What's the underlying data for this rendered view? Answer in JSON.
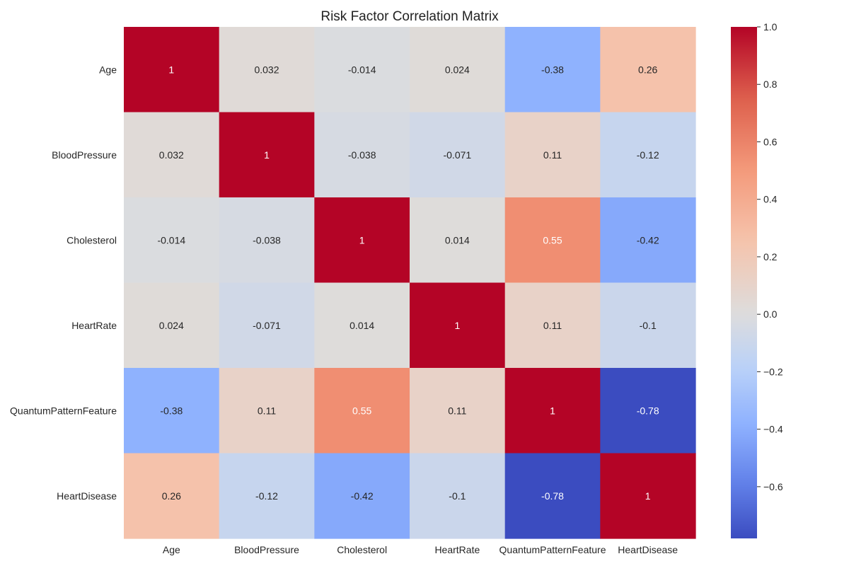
{
  "chart_data": {
    "type": "heatmap",
    "title": "Risk Factor Correlation Matrix",
    "xlabel": "",
    "ylabel": "",
    "x_categories": [
      "Age",
      "BloodPressure",
      "Cholesterol",
      "HeartRate",
      "QuantumPatternFeature",
      "HeartDisease"
    ],
    "y_categories": [
      "Age",
      "BloodPressure",
      "Cholesterol",
      "HeartRate",
      "QuantumPatternFeature",
      "HeartDisease"
    ],
    "values": [
      [
        1,
        0.032,
        -0.014,
        0.024,
        -0.38,
        0.26
      ],
      [
        0.032,
        1,
        -0.038,
        -0.071,
        0.11,
        -0.12
      ],
      [
        -0.014,
        -0.038,
        1,
        0.014,
        0.55,
        -0.42
      ],
      [
        0.024,
        -0.071,
        0.014,
        1,
        0.11,
        -0.1
      ],
      [
        -0.38,
        0.11,
        0.55,
        0.11,
        1,
        -0.78
      ],
      [
        0.26,
        -0.12,
        -0.42,
        -0.1,
        -0.78,
        1
      ]
    ],
    "annotations": [
      [
        "1",
        "0.032",
        "-0.014",
        "0.024",
        "-0.38",
        "0.26"
      ],
      [
        "0.032",
        "1",
        "-0.038",
        "-0.071",
        "0.11",
        "-0.12"
      ],
      [
        "-0.014",
        "-0.038",
        "1",
        "0.014",
        "0.55",
        "-0.42"
      ],
      [
        "0.024",
        "-0.071",
        "0.014",
        "1",
        "0.11",
        "-0.1"
      ],
      [
        "-0.38",
        "0.11",
        "0.55",
        "0.11",
        "1",
        "-0.78"
      ],
      [
        "0.26",
        "-0.12",
        "-0.42",
        "-0.1",
        "-0.78",
        "1"
      ]
    ],
    "colormap": "coolwarm",
    "colorbar": {
      "range": [
        -0.78,
        1
      ],
      "ticks": [
        1.0,
        0.8,
        0.6,
        0.4,
        0.2,
        0.0,
        -0.2,
        -0.4,
        -0.6
      ],
      "tick_labels": [
        "1.0",
        "0.8",
        "0.6",
        "0.4",
        "0.2",
        "0.0",
        "−0.2",
        "−0.4",
        "−0.6"
      ]
    },
    "grid": false
  }
}
